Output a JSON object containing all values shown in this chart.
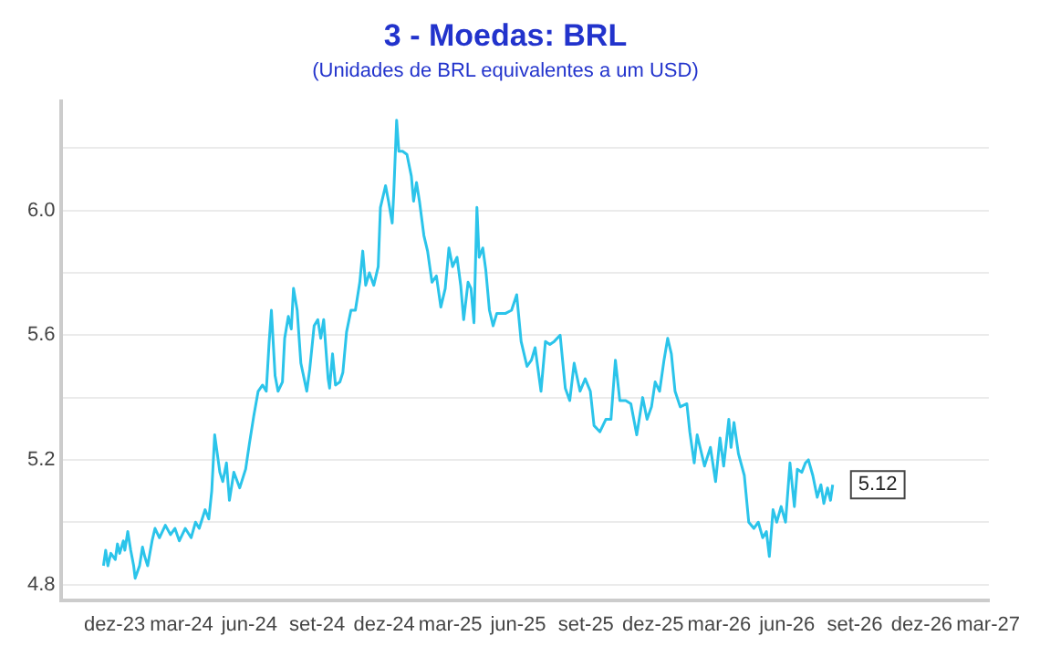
{
  "chart_data": {
    "type": "line",
    "title": "3 - Moedas: BRL",
    "subtitle": "(Unidades de BRL equivalentes a um USD)",
    "x": [
      "2023-11-16",
      "2023-11-19",
      "2023-11-22",
      "2023-11-26",
      "2023-12-02",
      "2023-12-05",
      "2023-12-08",
      "2023-12-13",
      "2023-12-15",
      "2023-12-19",
      "2023-12-23",
      "2023-12-27",
      "2023-12-29",
      "2024-01-04",
      "2024-01-08",
      "2024-01-11",
      "2024-01-15",
      "2024-01-21",
      "2024-01-25",
      "2024-01-31",
      "2024-02-08",
      "2024-02-15",
      "2024-02-21",
      "2024-02-27",
      "2024-03-06",
      "2024-03-14",
      "2024-03-20",
      "2024-03-25",
      "2024-04-02",
      "2024-04-07",
      "2024-04-11",
      "2024-04-15",
      "2024-04-22",
      "2024-04-26",
      "2024-05-01",
      "2024-05-05",
      "2024-05-11",
      "2024-05-19",
      "2024-05-27",
      "2024-06-01",
      "2024-06-07",
      "2024-06-13",
      "2024-06-19",
      "2024-06-24",
      "2024-06-28",
      "2024-07-01",
      "2024-07-06",
      "2024-07-10",
      "2024-07-16",
      "2024-07-19",
      "2024-07-24",
      "2024-07-28",
      "2024-07-31",
      "2024-08-05",
      "2024-08-10",
      "2024-08-18",
      "2024-08-22",
      "2024-08-28",
      "2024-09-02",
      "2024-09-06",
      "2024-09-10",
      "2024-09-16",
      "2024-09-18",
      "2024-09-22",
      "2024-09-26",
      "2024-10-02",
      "2024-10-06",
      "2024-10-11",
      "2024-10-17",
      "2024-10-23",
      "2024-10-29",
      "2024-11-02",
      "2024-11-06",
      "2024-11-11",
      "2024-11-17",
      "2024-11-23",
      "2024-11-26",
      "2024-12-03",
      "2024-12-07",
      "2024-12-12",
      "2024-12-14",
      "2024-12-18",
      "2024-12-21",
      "2024-12-26",
      "2025-01-01",
      "2025-01-07",
      "2025-01-10",
      "2025-01-14",
      "2025-01-18",
      "2025-01-24",
      "2025-01-29",
      "2025-02-04",
      "2025-02-10",
      "2025-02-16",
      "2025-02-22",
      "2025-02-27",
      "2025-03-04",
      "2025-03-10",
      "2025-03-15",
      "2025-03-19",
      "2025-03-25",
      "2025-03-29",
      "2025-04-02",
      "2025-04-06",
      "2025-04-09",
      "2025-04-14",
      "2025-04-18",
      "2025-04-23",
      "2025-04-28",
      "2025-05-03",
      "2025-05-15",
      "2025-05-23",
      "2025-05-30",
      "2025-06-05",
      "2025-06-13",
      "2025-06-19",
      "2025-06-24",
      "2025-07-02",
      "2025-07-08",
      "2025-07-14",
      "2025-07-20",
      "2025-07-28",
      "2025-08-04",
      "2025-08-10",
      "2025-08-16",
      "2025-08-24",
      "2025-08-31",
      "2025-09-07",
      "2025-09-12",
      "2025-09-20",
      "2025-09-28",
      "2025-10-05",
      "2025-10-11",
      "2025-10-17",
      "2025-10-25",
      "2025-11-01",
      "2025-11-09",
      "2025-11-17",
      "2025-11-23",
      "2025-11-29",
      "2025-12-04",
      "2025-12-10",
      "2025-12-16",
      "2025-12-21",
      "2025-12-26",
      "2025-12-31",
      "2026-01-07",
      "2026-01-16",
      "2026-01-20",
      "2026-01-26",
      "2026-01-30",
      "2026-02-03",
      "2026-02-09",
      "2026-02-17",
      "2026-02-24",
      "2026-03-02",
      "2026-03-07",
      "2026-03-14",
      "2026-03-17",
      "2026-03-21",
      "2026-03-27",
      "2026-04-04",
      "2026-04-10",
      "2026-04-17",
      "2026-04-23",
      "2026-04-29",
      "2026-05-04",
      "2026-05-08",
      "2026-05-13",
      "2026-05-18",
      "2026-05-24",
      "2026-05-30",
      "2026-06-05",
      "2026-06-11",
      "2026-06-15",
      "2026-06-21",
      "2026-06-26",
      "2026-06-30",
      "2026-07-06",
      "2026-07-12",
      "2026-07-17",
      "2026-07-21",
      "2026-07-26",
      "2026-07-30",
      "2026-08-02"
    ],
    "series": [
      {
        "color": "#2bc4ea",
        "values": [
          4.86,
          4.91,
          4.86,
          4.9,
          4.88,
          4.93,
          4.9,
          4.94,
          4.91,
          4.97,
          4.91,
          4.86,
          4.82,
          4.86,
          4.92,
          4.89,
          4.86,
          4.94,
          4.98,
          4.95,
          4.99,
          4.96,
          4.98,
          4.94,
          4.98,
          4.95,
          5.0,
          4.98,
          5.04,
          5.01,
          5.1,
          5.28,
          5.16,
          5.13,
          5.19,
          5.07,
          5.16,
          5.11,
          5.17,
          5.25,
          5.34,
          5.42,
          5.44,
          5.42,
          5.58,
          5.68,
          5.47,
          5.42,
          5.45,
          5.59,
          5.66,
          5.62,
          5.75,
          5.68,
          5.51,
          5.42,
          5.49,
          5.63,
          5.65,
          5.59,
          5.65,
          5.46,
          5.43,
          5.54,
          5.44,
          5.45,
          5.48,
          5.61,
          5.68,
          5.68,
          5.77,
          5.87,
          5.76,
          5.8,
          5.76,
          5.82,
          6.01,
          6.08,
          6.03,
          5.96,
          6.05,
          6.29,
          6.19,
          6.19,
          6.18,
          6.11,
          6.03,
          6.09,
          6.03,
          5.92,
          5.87,
          5.77,
          5.79,
          5.69,
          5.75,
          5.88,
          5.82,
          5.85,
          5.76,
          5.65,
          5.77,
          5.75,
          5.64,
          6.01,
          5.85,
          5.88,
          5.81,
          5.68,
          5.63,
          5.67,
          5.67,
          5.68,
          5.73,
          5.58,
          5.5,
          5.52,
          5.56,
          5.42,
          5.58,
          5.57,
          5.58,
          5.6,
          5.43,
          5.39,
          5.51,
          5.42,
          5.46,
          5.42,
          5.31,
          5.29,
          5.33,
          5.33,
          5.52,
          5.39,
          5.39,
          5.38,
          5.28,
          5.4,
          5.33,
          5.37,
          5.45,
          5.42,
          5.52,
          5.59,
          5.54,
          5.42,
          5.37,
          5.38,
          5.29,
          5.19,
          5.28,
          5.24,
          5.18,
          5.24,
          5.13,
          5.27,
          5.18,
          5.33,
          5.24,
          5.32,
          5.22,
          5.15,
          5.0,
          4.98,
          5.0,
          4.95,
          4.97,
          4.89,
          5.04,
          5.0,
          5.05,
          5.0,
          5.19,
          5.05,
          5.17,
          5.16,
          5.19,
          5.2,
          5.15,
          5.08,
          5.12,
          5.06,
          5.11,
          5.07,
          5.12
        ]
      }
    ],
    "xlim": [
      "2023-09-19",
      "2027-03-02"
    ],
    "xticks": [
      {
        "value": "2023-12-01",
        "label": "dez-23"
      },
      {
        "value": "2024-03-01",
        "label": "mar-24"
      },
      {
        "value": "2024-06-01",
        "label": "jun-24"
      },
      {
        "value": "2024-09-01",
        "label": "set-24"
      },
      {
        "value": "2024-12-01",
        "label": "dez-24"
      },
      {
        "value": "2025-03-01",
        "label": "mar-25"
      },
      {
        "value": "2025-06-01",
        "label": "jun-25"
      },
      {
        "value": "2025-09-01",
        "label": "set-25"
      },
      {
        "value": "2025-12-01",
        "label": "dez-25"
      },
      {
        "value": "2026-03-01",
        "label": "mar-26"
      },
      {
        "value": "2026-06-01",
        "label": "jun-26"
      },
      {
        "value": "2026-09-01",
        "label": "set-26"
      },
      {
        "value": "2026-12-01",
        "label": "dez-26"
      },
      {
        "value": "2027-03-01",
        "label": "mar-27"
      }
    ],
    "ylim": [
      4.75,
      6.35
    ],
    "yticks": [
      4.8,
      {
        "value": 5.0,
        "label": null
      },
      5.2,
      {
        "value": 5.4,
        "label": null
      },
      5.6,
      {
        "value": 5.8,
        "label": null
      },
      {
        "value": 6.0,
        "label": "6.0"
      },
      {
        "value": 6.2,
        "label": null
      }
    ],
    "grid": "y",
    "legend": false,
    "marker": "none",
    "line_style": "solid",
    "annotations": [
      {
        "text": "5.12",
        "x": "2026-08-02",
        "y": 5.12
      }
    ]
  }
}
